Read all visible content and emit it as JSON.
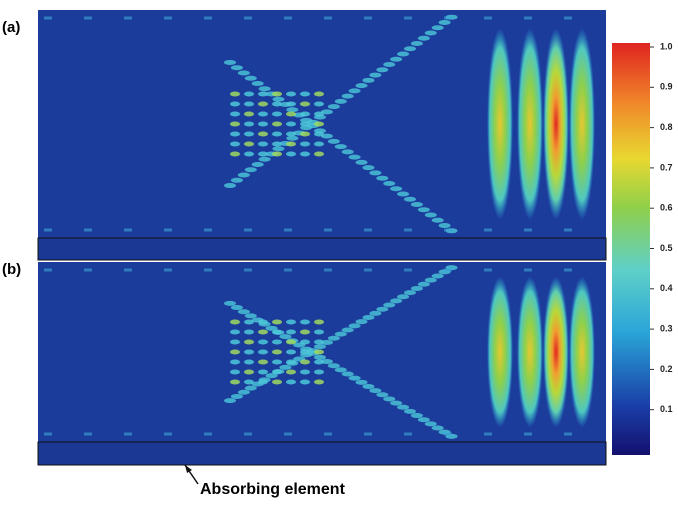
{
  "chart_data": {
    "type": "heatmap",
    "panels": [
      {
        "label": "(a)"
      },
      {
        "label": "(b)"
      }
    ],
    "colorbar": {
      "ylim": [
        0,
        1
      ],
      "yticks": [
        0.1,
        0.2,
        0.3,
        0.4,
        0.5,
        0.6,
        0.7,
        0.8,
        0.9,
        {
          "value": 1,
          "label": "1.0"
        }
      ]
    },
    "annotation": "Absorbing element"
  }
}
